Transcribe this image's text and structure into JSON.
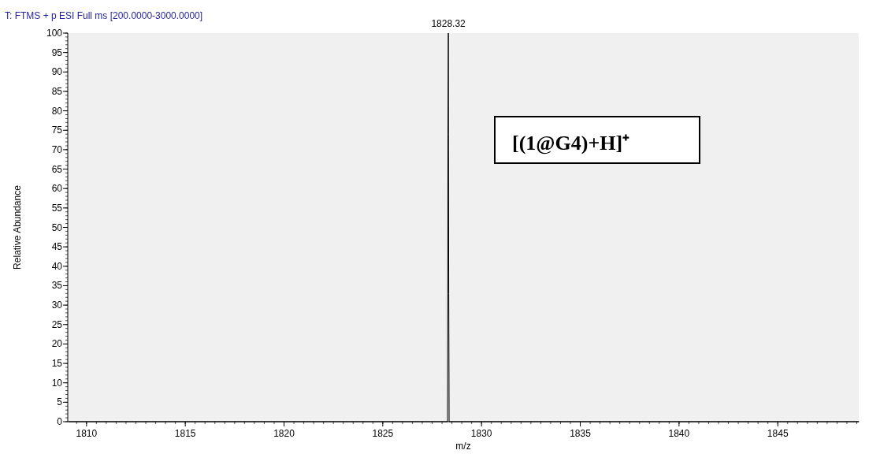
{
  "chart_data": {
    "type": "line",
    "title": "T: FTMS + p ESI Full ms [200.0000-3000.0000]",
    "xlabel": "m/z",
    "ylabel": "Relative Abundance",
    "x": [
      1809.1,
      1828.28,
      1828.3,
      1828.32,
      1828.34,
      1828.36,
      1849.1
    ],
    "series": [
      {
        "color": "#000000",
        "values": [
          0,
          0,
          74,
          100,
          33,
          0,
          0
        ]
      }
    ],
    "xlim": [
      1809.05,
      1849.1
    ],
    "xticks": [
      1810,
      1815,
      1820,
      1825,
      1830,
      1835,
      1840,
      1845
    ],
    "ylim": [
      0,
      100
    ],
    "yticks": [
      0,
      5,
      10,
      15,
      20,
      25,
      30,
      35,
      40,
      45,
      50,
      55,
      60,
      65,
      70,
      75,
      80,
      85,
      90,
      95,
      100
    ],
    "annotations": [
      {
        "text": "1828.32",
        "x": 1828.32,
        "y": 100
      },
      "[(1@G4)+H]⁺"
    ],
    "grid": false,
    "marker": "none",
    "line_style": "solid"
  }
}
